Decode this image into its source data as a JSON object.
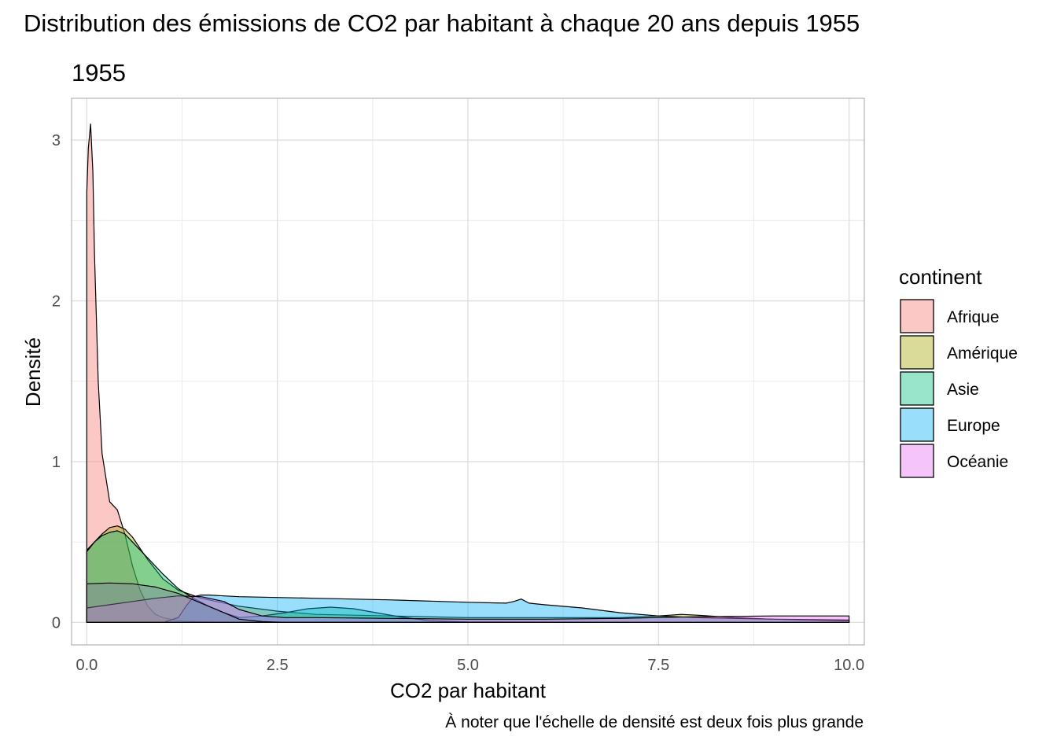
{
  "chart_data": {
    "type": "area",
    "title": "Distribution des émissions de CO2 par habitant à chaque 20 ans depuis 1955",
    "subtitle": "1955",
    "xlabel": "CO2 par habitant",
    "ylabel": "Densité",
    "caption": "À noter que l'échelle de densité est deux fois plus grande",
    "xlim": [
      -0.2,
      10.2
    ],
    "ylim": [
      -0.14,
      3.26
    ],
    "x_ticks": [
      0,
      2.5,
      5,
      7.5,
      10
    ],
    "x_tick_labels": [
      "0.0",
      "2.5",
      "5.0",
      "7.5",
      "10.0"
    ],
    "y_ticks": [
      0,
      1,
      2,
      3
    ],
    "y_tick_labels": [
      "0",
      "1",
      "2",
      "3"
    ],
    "grid": true,
    "legend": {
      "title": "continent",
      "placement": "right",
      "entries": [
        "Afrique",
        "Amérique",
        "Asie",
        "Europe",
        "Océanie"
      ]
    },
    "series": [
      {
        "name": "Afrique",
        "color": "#F8766D",
        "x": [
          0,
          0.02,
          0.05,
          0.08,
          0.1,
          0.15,
          0.2,
          0.3,
          0.4,
          0.5,
          0.6,
          0.7,
          0.8,
          0.9,
          1.0,
          1.2,
          1.5,
          1.8,
          2.0
        ],
        "y": [
          2.68,
          2.95,
          3.1,
          2.8,
          2.3,
          1.5,
          1.05,
          0.75,
          0.7,
          0.55,
          0.35,
          0.2,
          0.1,
          0.05,
          0.03,
          0.01,
          0.004,
          0.001,
          0
        ]
      },
      {
        "name": "Amérique",
        "color": "#A3A500",
        "x": [
          0,
          0.1,
          0.2,
          0.3,
          0.4,
          0.5,
          0.6,
          0.7,
          0.8,
          1.0,
          1.2,
          1.5,
          2.0,
          2.5,
          3.0,
          4.0,
          5.0,
          6.0,
          7.0,
          7.5,
          7.8,
          8.0,
          8.5,
          9.0,
          10.0
        ],
        "y": [
          0.45,
          0.5,
          0.55,
          0.59,
          0.6,
          0.58,
          0.53,
          0.46,
          0.39,
          0.27,
          0.2,
          0.15,
          0.1,
          0.07,
          0.05,
          0.04,
          0.03,
          0.03,
          0.03,
          0.04,
          0.05,
          0.045,
          0.03,
          0.02,
          0.015
        ]
      },
      {
        "name": "Asie",
        "color": "#00BF7D",
        "x": [
          0,
          0.1,
          0.2,
          0.3,
          0.4,
          0.5,
          0.6,
          0.8,
          1.0,
          1.2,
          1.4,
          1.6,
          1.8,
          2.0,
          2.3,
          2.6,
          2.9,
          3.2,
          3.5,
          3.8,
          4.1,
          4.5,
          5.0,
          6.0,
          7.0,
          8.0,
          9.0,
          10.0
        ],
        "y": [
          0.44,
          0.5,
          0.54,
          0.56,
          0.57,
          0.55,
          0.5,
          0.4,
          0.3,
          0.21,
          0.15,
          0.1,
          0.06,
          0.03,
          0.04,
          0.06,
          0.085,
          0.095,
          0.085,
          0.06,
          0.035,
          0.01,
          0.003,
          0.002,
          0.001,
          0,
          0,
          0
        ]
      },
      {
        "name": "Europe",
        "color": "#00B0F6",
        "x": [
          0,
          0.5,
          0.7,
          0.8,
          1.0,
          1.2,
          1.3,
          1.4,
          1.5,
          1.6,
          1.8,
          2.0,
          3.0,
          4.0,
          5.0,
          5.5,
          5.6,
          5.7,
          5.8,
          6.0,
          6.5,
          7.0,
          7.5,
          8.0,
          8.5,
          9.0,
          9.5,
          10.0
        ],
        "y": [
          0,
          0,
          0,
          0,
          0,
          0.03,
          0.1,
          0.16,
          0.17,
          0.17,
          0.165,
          0.16,
          0.15,
          0.14,
          0.125,
          0.12,
          0.13,
          0.145,
          0.12,
          0.11,
          0.09,
          0.06,
          0.04,
          0.03,
          0.025,
          0.02,
          0.015,
          0.01
        ]
      },
      {
        "name": "Océanie",
        "color": "#E76BF3",
        "x": [
          0,
          0.3,
          0.6,
          0.9,
          1.2,
          1.5,
          1.8,
          2.0,
          2.3,
          2.6,
          3.0,
          4.0,
          5.0,
          6.0,
          7.0,
          8.0,
          9.0,
          10.0
        ],
        "y": [
          0.09,
          0.11,
          0.13,
          0.15,
          0.165,
          0.16,
          0.13,
          0.08,
          0.04,
          0.03,
          0.03,
          0.025,
          0.02,
          0.02,
          0.025,
          0.035,
          0.04,
          0.04
        ]
      },
      {
        "name": "",
        "color": "#7F7F9F",
        "x": [
          0,
          0.3,
          0.6,
          0.9,
          1.2,
          1.5,
          1.8,
          2.0,
          2.3,
          2.6,
          3.0,
          4.0,
          5.0
        ],
        "y": [
          0.24,
          0.245,
          0.24,
          0.22,
          0.18,
          0.12,
          0.06,
          0.02,
          0.005,
          0,
          0,
          0,
          0
        ]
      }
    ]
  }
}
